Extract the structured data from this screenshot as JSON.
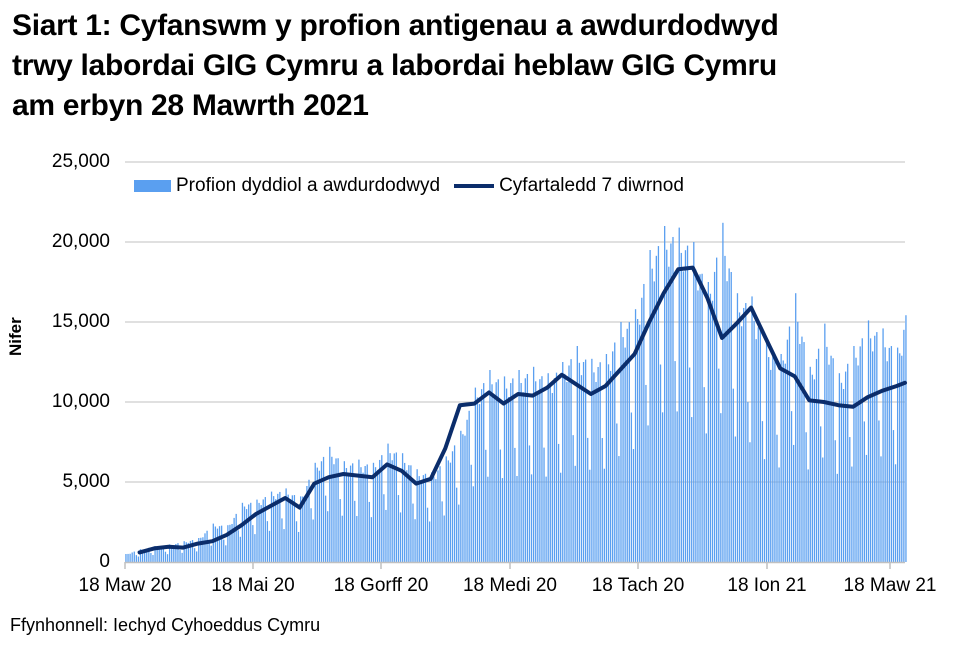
{
  "title_lines": [
    "Siart 1: Cyfanswm y profion antigenau a awdurdodwyd",
    "trwy labordai GIG Cymru a labordai heblaw GIG Cymru",
    "am erbyn 28 Mawrth 2021"
  ],
  "source": "Ffynhonnell: Iechyd Cyhoeddus Cymru",
  "colors": {
    "bars": "#5a9ff0",
    "line": "#0b2d6b",
    "grid": "#c0c0c0"
  },
  "chart_data": {
    "type": "bar",
    "title": "Siart 1: Cyfanswm y profion antigenau a awdurdodwyd trwy labordai GIG Cymru a labordai heblaw GIG Cymru am erbyn 28 Mawrth 2021",
    "xlabel": "",
    "ylabel": "Nifer",
    "ylim": [
      0,
      25000
    ],
    "yticks": [
      0,
      5000,
      10000,
      15000,
      20000,
      25000
    ],
    "ytick_labels": [
      "0",
      "5,000",
      "10,000",
      "15,000",
      "20,000",
      "25,000"
    ],
    "xtick_labels": [
      "18 Maw 20",
      "18 Mai 20",
      "18 Gorff 20",
      "18 Medi 20",
      "18 Tach 20",
      "18 Ion 21",
      "18 Maw 21"
    ],
    "x_range": [
      "2020-03-18",
      "2021-03-28"
    ],
    "grid": true,
    "legend_position": "top",
    "legend": [
      "Profion dyddiol a awdurdodwyd",
      "Cyfartaledd 7 diwrnod"
    ],
    "series": [
      {
        "name": "Profion dyddiol a awdurdodwyd",
        "type": "bar",
        "note": "daily values, sampled approx. every 7 days (weekly peak)",
        "x": [
          "2020-03-18",
          "2020-03-25",
          "2020-04-01",
          "2020-04-08",
          "2020-04-15",
          "2020-04-22",
          "2020-04-29",
          "2020-05-06",
          "2020-05-13",
          "2020-05-20",
          "2020-05-27",
          "2020-06-03",
          "2020-06-10",
          "2020-06-17",
          "2020-06-24",
          "2020-07-01",
          "2020-07-08",
          "2020-07-15",
          "2020-07-22",
          "2020-07-29",
          "2020-08-05",
          "2020-08-12",
          "2020-08-19",
          "2020-08-26",
          "2020-09-02",
          "2020-09-09",
          "2020-09-16",
          "2020-09-23",
          "2020-09-30",
          "2020-10-07",
          "2020-10-14",
          "2020-10-21",
          "2020-10-28",
          "2020-11-04",
          "2020-11-11",
          "2020-11-18",
          "2020-11-25",
          "2020-12-02",
          "2020-12-09",
          "2020-12-16",
          "2020-12-23",
          "2020-12-30",
          "2021-01-06",
          "2021-01-13",
          "2021-01-20",
          "2021-01-27",
          "2021-02-03",
          "2021-02-10",
          "2021-02-17",
          "2021-02-24",
          "2021-03-03",
          "2021-03-10",
          "2021-03-17",
          "2021-03-24",
          "2021-03-28"
        ],
        "values": [
          500,
          800,
          1000,
          1100,
          1300,
          1500,
          2400,
          2300,
          3700,
          3900,
          4400,
          4600,
          4100,
          6200,
          7200,
          6300,
          6400,
          6200,
          7400,
          6800,
          5800,
          5600,
          6600,
          8200,
          10900,
          12000,
          11600,
          12000,
          12200,
          11800,
          12500,
          13500,
          12700,
          13000,
          15000,
          15800,
          19500,
          21000,
          20900,
          20000,
          17500,
          21200,
          16800,
          16600,
          13900,
          13000,
          16800,
          12200,
          14900,
          11800,
          13500,
          15100,
          14600,
          13400,
          15900
        ]
      },
      {
        "name": "Cyfartaledd 7 diwrnod",
        "type": "line",
        "x": [
          "2020-03-18",
          "2020-03-25",
          "2020-04-01",
          "2020-04-08",
          "2020-04-15",
          "2020-04-22",
          "2020-04-29",
          "2020-05-06",
          "2020-05-13",
          "2020-05-20",
          "2020-05-27",
          "2020-06-03",
          "2020-06-10",
          "2020-06-17",
          "2020-06-24",
          "2020-07-01",
          "2020-07-08",
          "2020-07-15",
          "2020-07-22",
          "2020-07-29",
          "2020-08-05",
          "2020-08-12",
          "2020-08-19",
          "2020-08-26",
          "2020-09-02",
          "2020-09-09",
          "2020-09-16",
          "2020-09-23",
          "2020-09-30",
          "2020-10-07",
          "2020-10-14",
          "2020-10-21",
          "2020-10-28",
          "2020-11-04",
          "2020-11-11",
          "2020-11-18",
          "2020-11-25",
          "2020-12-02",
          "2020-12-09",
          "2020-12-16",
          "2020-12-23",
          "2020-12-30",
          "2021-01-06",
          "2021-01-13",
          "2021-01-20",
          "2021-01-27",
          "2021-02-03",
          "2021-02-10",
          "2021-02-17",
          "2021-02-24",
          "2021-03-03",
          "2021-03-10",
          "2021-03-17",
          "2021-03-24",
          "2021-03-28"
        ],
        "values": [
          null,
          600,
          850,
          950,
          900,
          1150,
          1300,
          1700,
          2300,
          3000,
          3500,
          4000,
          3400,
          4900,
          5300,
          5500,
          5400,
          5300,
          6100,
          5700,
          4900,
          5200,
          7100,
          9800,
          9900,
          10600,
          9900,
          10500,
          10400,
          10900,
          11700,
          11100,
          10500,
          11000,
          12000,
          13000,
          15000,
          16800,
          18300,
          18400,
          16500,
          14000,
          14900,
          15900,
          14000,
          12100,
          11600,
          10100,
          10000,
          9800,
          9700,
          10300,
          10700,
          11000,
          11200
        ]
      }
    ]
  }
}
